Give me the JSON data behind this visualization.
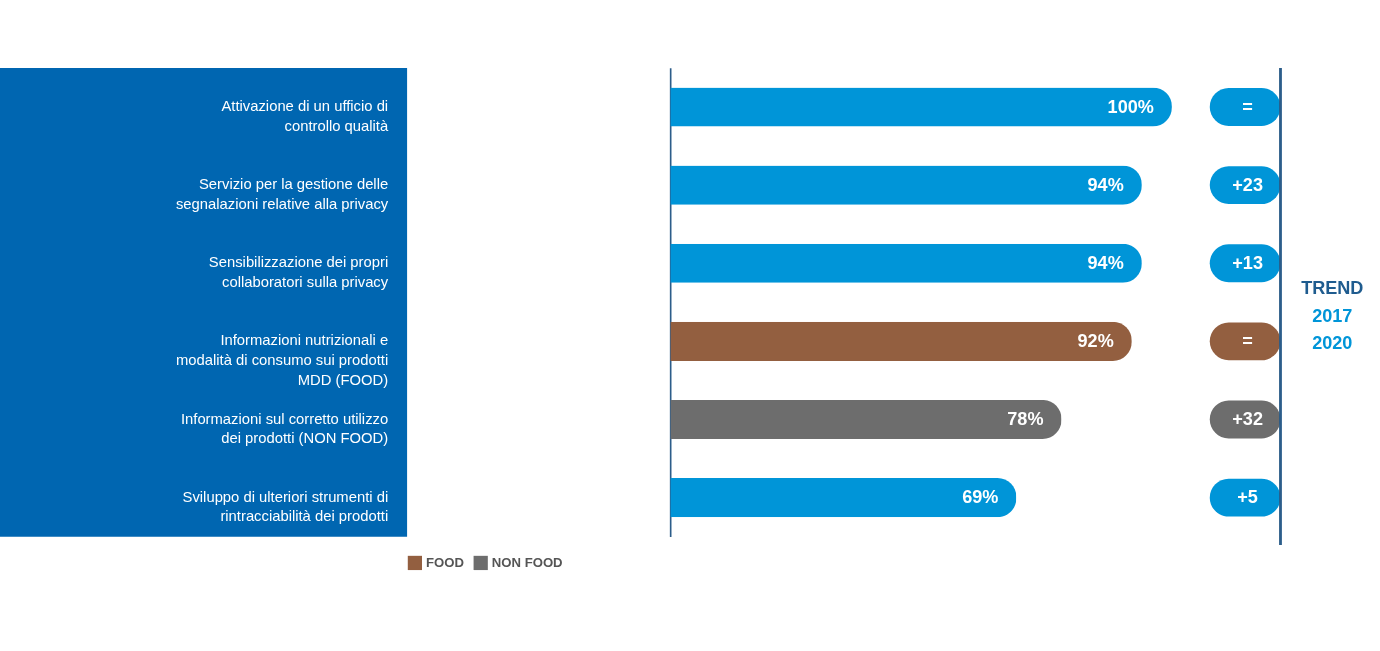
{
  "chart_data": {
    "type": "bar",
    "orientation": "horizontal",
    "stacked": true,
    "categories": [
      "Attivazione di un ufficio di controllo qualità",
      "Servizio per la gestione delle segnalazioni relative alla privacy",
      "Sensibilizzazione dei propri collaboratori sulla privacy",
      "Informazioni nutrizionali e modalità di consumo sui prodotti MDD (FOOD)",
      "Informazioni sul corretto utilizzo dei prodotti (NON FOOD)",
      "Sviluppo di ulteriori strumenti di rintracciabilità dei prodotti"
    ],
    "series": [
      {
        "color": "#0095d8",
        "values": [
          100,
          94,
          94,
          null,
          null,
          69
        ],
        "value_labels": [
          "100%",
          "94%",
          "94%",
          null,
          null,
          "69%"
        ]
      },
      {
        "name": "FOOD",
        "color": "#935f40",
        "values": [
          null,
          null,
          null,
          92,
          null,
          null
        ],
        "value_labels": [
          null,
          null,
          null,
          "92%",
          null,
          null
        ]
      },
      {
        "name": "NON FOOD",
        "color": "#6d6d6d",
        "values": [
          null,
          null,
          null,
          null,
          78,
          null
        ],
        "value_labels": [
          null,
          null,
          null,
          null,
          "78%",
          null
        ]
      }
    ],
    "xlim": [
      0,
      100
    ],
    "tick_labels": "y",
    "legend": "bottom left",
    "annotations": [
      "TREND 2017 2020",
      "=",
      "+23",
      "+13",
      "=",
      "+32",
      "+5"
    ]
  }
}
